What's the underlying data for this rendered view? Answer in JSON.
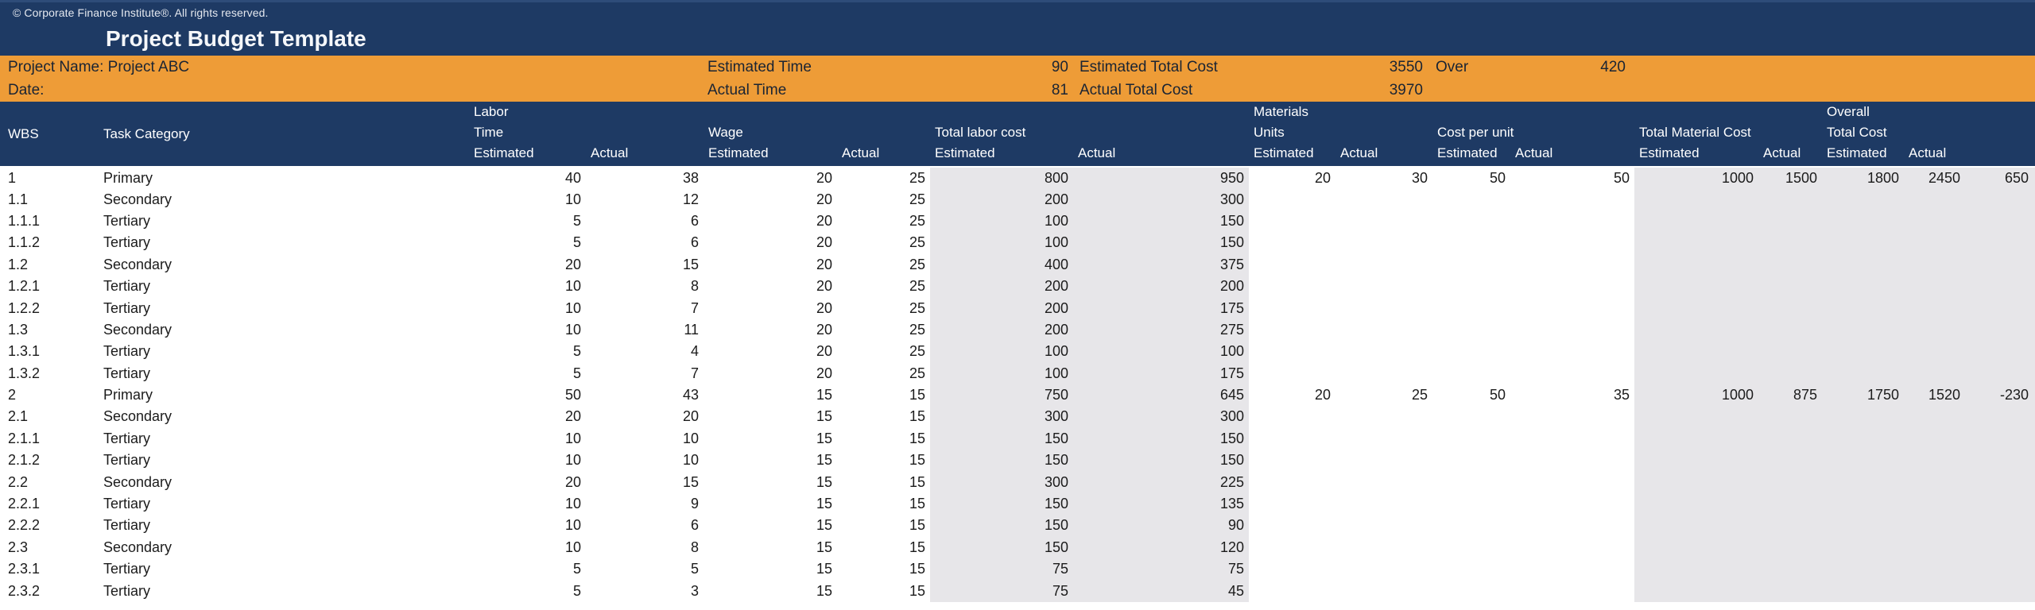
{
  "window": {
    "copyright": "© Corporate Finance Institute®. All rights reserved.",
    "title": "Project Budget Template"
  },
  "colors": {
    "navy": "#1E3A64",
    "orange": "#EE9C37",
    "grey_column_fill": "#E7E6E9",
    "header_text": "#FFFFFF",
    "body_text": "#1B1B1B"
  },
  "info_band": {
    "project_name": "Project Name: Project ABC",
    "date_label": "Date:",
    "estimated_time_label": "Estimated Time",
    "estimated_time_value": "90",
    "estimated_total_cost_label": "Estimated Total Cost",
    "estimated_total_cost_value": "3550",
    "over_label": "Over",
    "over_value": "420",
    "actual_time_label": "Actual Time",
    "actual_time_value": "81",
    "actual_total_cost_label": "Actual Total Cost",
    "actual_total_cost_value": "3970"
  },
  "table": {
    "headers": {
      "wbs": "WBS",
      "task_category": "Task Category",
      "labor_line1": "Labor",
      "labor_line2": "Time",
      "wage": "Wage",
      "total_labor_cost": "Total labor cost",
      "materials_line1": "Materials",
      "materials_line2": "Units",
      "cost_per_unit": "Cost per unit",
      "total_material_cost": "Total Material Cost",
      "overall_line1": "Overall",
      "overall_line2": "Total Cost",
      "estimated": "Estimated",
      "actual": "Actual"
    },
    "rows": [
      [
        "1",
        "Primary",
        "40",
        "38",
        "20",
        "25",
        "800",
        "950",
        "20",
        "30",
        "50",
        "50",
        "1000",
        "1500",
        "1800",
        "2450",
        "650"
      ],
      [
        "1.1",
        "Secondary",
        "10",
        "12",
        "20",
        "25",
        "200",
        "300",
        "",
        "",
        "",
        "",
        "",
        "",
        "",
        "",
        ""
      ],
      [
        "1.1.1",
        "Tertiary",
        "5",
        "6",
        "20",
        "25",
        "100",
        "150",
        "",
        "",
        "",
        "",
        "",
        "",
        "",
        "",
        ""
      ],
      [
        "1.1.2",
        "Tertiary",
        "5",
        "6",
        "20",
        "25",
        "100",
        "150",
        "",
        "",
        "",
        "",
        "",
        "",
        "",
        "",
        ""
      ],
      [
        "1.2",
        "Secondary",
        "20",
        "15",
        "20",
        "25",
        "400",
        "375",
        "",
        "",
        "",
        "",
        "",
        "",
        "",
        "",
        ""
      ],
      [
        "1.2.1",
        "Tertiary",
        "10",
        "8",
        "20",
        "25",
        "200",
        "200",
        "",
        "",
        "",
        "",
        "",
        "",
        "",
        "",
        ""
      ],
      [
        "1.2.2",
        "Tertiary",
        "10",
        "7",
        "20",
        "25",
        "200",
        "175",
        "",
        "",
        "",
        "",
        "",
        "",
        "",
        "",
        ""
      ],
      [
        "1.3",
        "Secondary",
        "10",
        "11",
        "20",
        "25",
        "200",
        "275",
        "",
        "",
        "",
        "",
        "",
        "",
        "",
        "",
        ""
      ],
      [
        "1.3.1",
        "Tertiary",
        "5",
        "4",
        "20",
        "25",
        "100",
        "100",
        "",
        "",
        "",
        "",
        "",
        "",
        "",
        "",
        ""
      ],
      [
        "1.3.2",
        "Tertiary",
        "5",
        "7",
        "20",
        "25",
        "100",
        "175",
        "",
        "",
        "",
        "",
        "",
        "",
        "",
        "",
        ""
      ],
      [
        "2",
        "Primary",
        "50",
        "43",
        "15",
        "15",
        "750",
        "645",
        "20",
        "25",
        "50",
        "35",
        "1000",
        "875",
        "1750",
        "1520",
        "-230"
      ],
      [
        "2.1",
        "Secondary",
        "20",
        "20",
        "15",
        "15",
        "300",
        "300",
        "",
        "",
        "",
        "",
        "",
        "",
        "",
        "",
        ""
      ],
      [
        "2.1.1",
        "Tertiary",
        "10",
        "10",
        "15",
        "15",
        "150",
        "150",
        "",
        "",
        "",
        "",
        "",
        "",
        "",
        "",
        ""
      ],
      [
        "2.1.2",
        "Tertiary",
        "10",
        "10",
        "15",
        "15",
        "150",
        "150",
        "",
        "",
        "",
        "",
        "",
        "",
        "",
        "",
        ""
      ],
      [
        "2.2",
        "Secondary",
        "20",
        "15",
        "15",
        "15",
        "300",
        "225",
        "",
        "",
        "",
        "",
        "",
        "",
        "",
        "",
        ""
      ],
      [
        "2.2.1",
        "Tertiary",
        "10",
        "9",
        "15",
        "15",
        "150",
        "135",
        "",
        "",
        "",
        "",
        "",
        "",
        "",
        "",
        ""
      ],
      [
        "2.2.2",
        "Tertiary",
        "10",
        "6",
        "15",
        "15",
        "150",
        "90",
        "",
        "",
        "",
        "",
        "",
        "",
        "",
        "",
        ""
      ],
      [
        "2.3",
        "Secondary",
        "10",
        "8",
        "15",
        "15",
        "150",
        "120",
        "",
        "",
        "",
        "",
        "",
        "",
        "",
        "",
        ""
      ],
      [
        "2.3.1",
        "Tertiary",
        "5",
        "5",
        "15",
        "15",
        "75",
        "75",
        "",
        "",
        "",
        "",
        "",
        "",
        "",
        "",
        ""
      ],
      [
        "2.3.2",
        "Tertiary",
        "5",
        "3",
        "15",
        "15",
        "75",
        "45",
        "",
        "",
        "",
        "",
        "",
        "",
        "",
        "",
        ""
      ]
    ]
  }
}
